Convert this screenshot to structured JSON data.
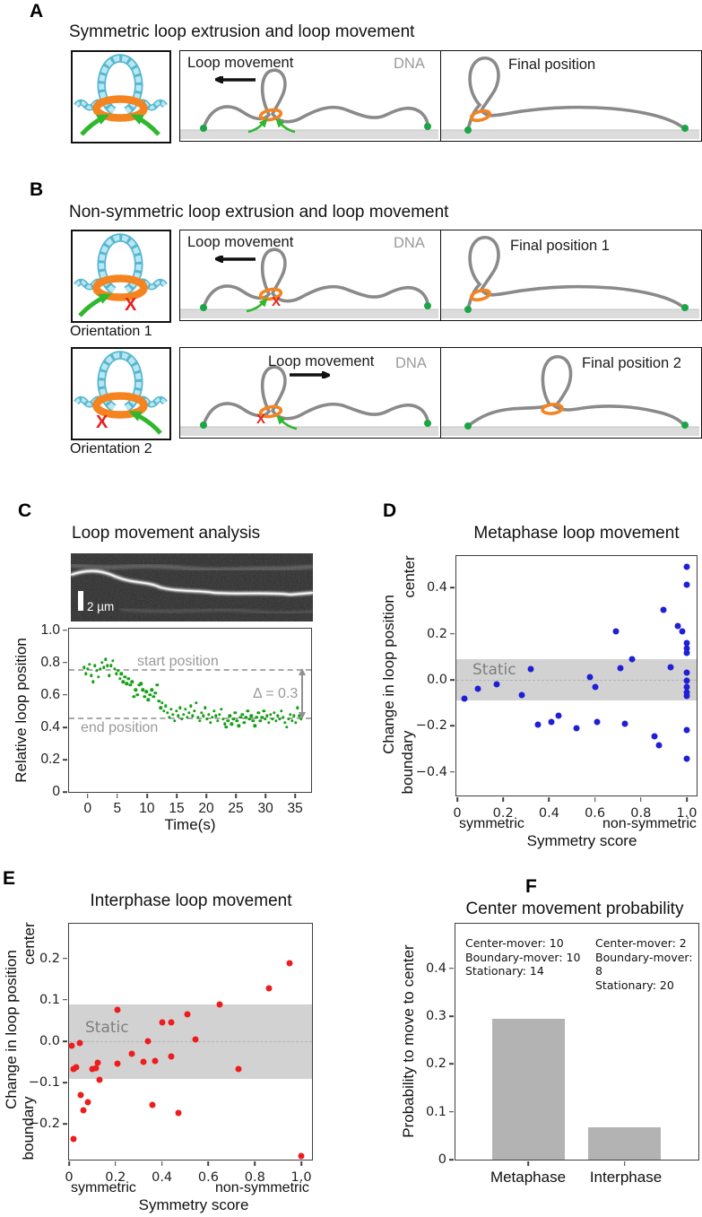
{
  "figure": {
    "panel_a": {
      "label": "A",
      "title": "Symmetric loop extrusion and loop movement",
      "mid": {
        "heading": "Loop movement",
        "dna": "DNA"
      },
      "right": {
        "heading": "Final position"
      }
    },
    "panel_b": {
      "label": "B",
      "title": "Non-symmetric loop extrusion and loop movement",
      "row1": {
        "caption": "Orientation 1",
        "mid_heading": "Loop movement",
        "dna": "DNA",
        "x_mark": "X",
        "right_heading": "Final position 1"
      },
      "row2": {
        "caption": "Orientation 2",
        "mid_heading": "Loop movement",
        "dna": "DNA",
        "x_mark": "X",
        "right_heading": "Final position 2"
      }
    },
    "panel_c": {
      "label": "C",
      "title": "Loop movement analysis",
      "scalebar_label": "2 µm",
      "start_label": "start position",
      "end_label": "end position",
      "delta_label": "Δ = 0.3",
      "ylabel": "Relative loop position",
      "xlabel": "Time(s)"
    },
    "panel_d": {
      "label": "D",
      "title": "Metaphase loop movement",
      "static_label": "Static",
      "ylabel": "Change in loop position",
      "y_top_word": "center",
      "y_bottom_word": "boundary",
      "x_left_word": "symmetric",
      "x_right_word": "non-symmetric",
      "xlabel": "Symmetry score"
    },
    "panel_e": {
      "label": "E",
      "title": "Interphase loop movement",
      "static_label": "Static",
      "ylabel": "Change in loop position",
      "y_top_word": "center",
      "y_bottom_word": "boundary",
      "x_left_word": "symmetric",
      "x_right_word": "non-symmetric",
      "xlabel": "Symmetry score"
    },
    "panel_f": {
      "label": "F",
      "title": "Center movement probability",
      "ylabel": "Probability to move to center",
      "stats_metaphase": "Center-mover: 10\nBoundary-mover: 10\nStationary: 14",
      "stats_interphase": "Center-mover: 2\nBoundary-mover: 8\nStationary: 20",
      "cat_metaphase": "Metaphase",
      "cat_interphase": "Interphase"
    }
  },
  "colors": {
    "dna_strand_gray": "#8a8a8a",
    "condensin_orange": "#f5831f",
    "dna_cartoon_cyan": "#b9e7f3",
    "dna_cartoon_cyan_dark": "#57b7cf",
    "arrow_green": "#2eb82e",
    "tether_dot_green": "#1ca544",
    "red_x": "#e61e1e",
    "scatter_green": "#16a016",
    "scatter_blue": "#1f1fd6",
    "scatter_red": "#ee1c1c",
    "bar_gray": "#b3b3b3",
    "static_band_gray": "#d2d2d2",
    "surface_gray": "#dcdcdc"
  },
  "chart_data": [
    {
      "id": "loop-trace",
      "type": "scatter",
      "title": "Loop movement analysis",
      "xlabel": "Time(s)",
      "ylabel": "Relative loop position",
      "xlim": [
        -3.15,
        37.7
      ],
      "ylim": [
        0,
        1.01
      ],
      "xticks": {
        "v": [
          0,
          5,
          10,
          15,
          20,
          25,
          30,
          35
        ],
        "l": [
          "0",
          "5",
          "10",
          "15",
          "20",
          "25",
          "30",
          "35"
        ]
      },
      "yticks": {
        "v": [
          0,
          0.2,
          0.4,
          0.6,
          0.8,
          1.0
        ],
        "l": [
          "0",
          "0.2",
          "0.4",
          "0.6",
          "0.8",
          "1.0"
        ]
      },
      "hlines": [
        {
          "y": 0.76,
          "label": "start position"
        },
        {
          "y": 0.46,
          "label": "end position"
        }
      ],
      "delta": 0.3,
      "point": {
        "color": "#16a016",
        "size": 3.4
      },
      "points": [
        [
          -0.6,
          0.77
        ],
        [
          -0.3,
          0.73
        ],
        [
          0,
          0.76
        ],
        [
          0.3,
          0.79
        ],
        [
          0.6,
          0.72
        ],
        [
          0.9,
          0.68
        ],
        [
          1.2,
          0.78
        ],
        [
          1.5,
          0.75
        ],
        [
          1.8,
          0.71
        ],
        [
          2.1,
          0.76
        ],
        [
          2.4,
          0.8
        ],
        [
          2.7,
          0.77
        ],
        [
          3.0,
          0.82
        ],
        [
          3.3,
          0.78
        ],
        [
          3.6,
          0.72
        ],
        [
          3.9,
          0.78
        ],
        [
          4.2,
          0.81
        ],
        [
          4.5,
          0.76
        ],
        [
          4.8,
          0.73
        ],
        [
          5.1,
          0.75
        ],
        [
          5.4,
          0.7
        ],
        [
          5.7,
          0.73
        ],
        [
          6.0,
          0.68
        ],
        [
          6.3,
          0.71
        ],
        [
          6.6,
          0.67
        ],
        [
          6.9,
          0.7
        ],
        [
          7.2,
          0.66
        ],
        [
          7.5,
          0.68
        ],
        [
          7.8,
          0.59
        ],
        [
          8.1,
          0.63
        ],
        [
          8.4,
          0.6
        ],
        [
          8.7,
          0.66
        ],
        [
          9.0,
          0.67
        ],
        [
          9.3,
          0.63
        ],
        [
          9.6,
          0.59
        ],
        [
          9.9,
          0.62
        ],
        [
          10.2,
          0.57
        ],
        [
          10.5,
          0.6
        ],
        [
          10.8,
          0.63
        ],
        [
          11.1,
          0.59
        ],
        [
          11.4,
          0.61
        ],
        [
          11.7,
          0.66
        ],
        [
          12.0,
          0.56
        ],
        [
          12.3,
          0.52
        ],
        [
          12.6,
          0.55
        ],
        [
          12.9,
          0.5
        ],
        [
          13.2,
          0.53
        ],
        [
          13.5,
          0.49
        ],
        [
          13.8,
          0.46
        ],
        [
          14.1,
          0.51
        ],
        [
          14.4,
          0.48
        ],
        [
          14.7,
          0.44
        ],
        [
          15.0,
          0.5
        ],
        [
          15.3,
          0.47
        ],
        [
          15.6,
          0.52
        ],
        [
          15.9,
          0.45
        ],
        [
          16.2,
          0.48
        ],
        [
          16.5,
          0.51
        ],
        [
          16.8,
          0.46
        ],
        [
          17.1,
          0.49
        ],
        [
          17.4,
          0.53
        ],
        [
          17.7,
          0.47
        ],
        [
          18.0,
          0.5
        ],
        [
          18.3,
          0.55
        ],
        [
          18.6,
          0.46
        ],
        [
          18.9,
          0.44
        ],
        [
          19.2,
          0.49
        ],
        [
          19.5,
          0.47
        ],
        [
          19.8,
          0.52
        ],
        [
          20.1,
          0.45
        ],
        [
          20.4,
          0.48
        ],
        [
          20.7,
          0.43
        ],
        [
          21.0,
          0.46
        ],
        [
          21.3,
          0.5
        ],
        [
          21.6,
          0.47
        ],
        [
          21.9,
          0.44
        ],
        [
          22.2,
          0.48
        ],
        [
          22.5,
          0.51
        ],
        [
          22.8,
          0.45
        ],
        [
          23.1,
          0.42
        ],
        [
          23.4,
          0.4
        ],
        [
          23.7,
          0.44
        ],
        [
          24.0,
          0.47
        ],
        [
          24.3,
          0.42
        ],
        [
          24.6,
          0.45
        ],
        [
          24.9,
          0.49
        ],
        [
          25.2,
          0.44
        ],
        [
          25.5,
          0.41
        ],
        [
          25.8,
          0.46
        ],
        [
          26.1,
          0.48
        ],
        [
          26.4,
          0.43
        ],
        [
          26.7,
          0.46
        ],
        [
          27.0,
          0.5
        ],
        [
          27.3,
          0.45
        ],
        [
          27.6,
          0.47
        ],
        [
          27.9,
          0.44
        ],
        [
          28.2,
          0.41
        ],
        [
          28.5,
          0.46
        ],
        [
          28.8,
          0.49
        ],
        [
          29.1,
          0.44
        ],
        [
          29.4,
          0.46
        ],
        [
          29.7,
          0.5
        ],
        [
          30.0,
          0.45
        ],
        [
          30.3,
          0.47
        ],
        [
          30.6,
          0.43
        ],
        [
          30.9,
          0.48
        ],
        [
          31.2,
          0.45
        ],
        [
          31.5,
          0.49
        ],
        [
          31.8,
          0.44
        ],
        [
          32.1,
          0.47
        ],
        [
          32.4,
          0.45
        ],
        [
          32.7,
          0.5
        ],
        [
          33.0,
          0.46
        ],
        [
          33.3,
          0.43
        ],
        [
          33.6,
          0.4
        ],
        [
          33.9,
          0.45
        ],
        [
          34.2,
          0.48
        ],
        [
          34.5,
          0.44
        ],
        [
          34.8,
          0.47
        ],
        [
          35.1,
          0.43
        ],
        [
          35.4,
          0.52
        ],
        [
          35.7,
          0.47
        ],
        [
          36.0,
          0.45
        ]
      ]
    },
    {
      "id": "metaphase",
      "type": "scatter",
      "title": "Metaphase loop movement",
      "xlabel": "Symmetry score",
      "ylabel": "Change in loop position",
      "xlim": [
        -0.004,
        1.043
      ],
      "ylim": [
        -0.503,
        0.538
      ],
      "xticks": {
        "v": [
          0,
          0.2,
          0.4,
          0.6,
          0.8,
          1.0
        ],
        "l": [
          "0",
          "0.2",
          "0.4",
          "0.6",
          "0.8",
          "1.0"
        ]
      },
      "yticks": {
        "v": [
          -0.4,
          -0.2,
          0.0,
          0.2,
          0.4
        ],
        "l": [
          "−0.4",
          "−0.2",
          "0.0",
          "0.2",
          "0.4"
        ]
      },
      "static_band": [
        -0.09,
        0.09
      ],
      "zero_line": true,
      "point": {
        "color": "#1f1fd6",
        "size": 7
      },
      "points": [
        [
          0.03,
          -0.08
        ],
        [
          0.09,
          -0.04
        ],
        [
          0.17,
          -0.02
        ],
        [
          0.28,
          -0.065
        ],
        [
          0.32,
          0.045
        ],
        [
          0.35,
          -0.195
        ],
        [
          0.41,
          -0.185
        ],
        [
          0.44,
          -0.155
        ],
        [
          0.52,
          -0.21
        ],
        [
          0.58,
          0.01
        ],
        [
          0.6,
          -0.03
        ],
        [
          0.61,
          -0.185
        ],
        [
          0.69,
          0.21
        ],
        [
          0.71,
          0.05
        ],
        [
          0.73,
          -0.19
        ],
        [
          0.76,
          0.088
        ],
        [
          0.86,
          -0.245
        ],
        [
          0.88,
          -0.285
        ],
        [
          0.9,
          0.305
        ],
        [
          0.93,
          0.055
        ],
        [
          0.96,
          0.235
        ],
        [
          0.98,
          0.21
        ],
        [
          1.0,
          0.49
        ],
        [
          1.0,
          0.415
        ],
        [
          1.0,
          0.16
        ],
        [
          1.0,
          0.135
        ],
        [
          1.0,
          0.115
        ],
        [
          1.0,
          0.03
        ],
        [
          1.0,
          -0.005
        ],
        [
          1.0,
          -0.03
        ],
        [
          1.0,
          -0.055
        ],
        [
          1.0,
          -0.07
        ],
        [
          1.0,
          -0.22
        ],
        [
          1.0,
          -0.345
        ]
      ]
    },
    {
      "id": "interphase",
      "type": "scatter",
      "title": "Interphase loop movement",
      "xlabel": "Symmetry score",
      "ylabel": "Change in loop position",
      "xlim": [
        0,
        1.046
      ],
      "ylim": [
        -0.286,
        0.284
      ],
      "xticks": {
        "v": [
          0,
          0.2,
          0.4,
          0.6,
          0.8,
          1.0
        ],
        "l": [
          "0",
          "0.2",
          "0.4",
          "0.6",
          "0.8",
          "1.0"
        ]
      },
      "yticks": {
        "v": [
          -0.2,
          -0.1,
          0.0,
          0.1,
          0.2
        ],
        "l": [
          "−0.2",
          "−0.1",
          "0.0",
          "0.1",
          "0.2"
        ]
      },
      "static_band": [
        -0.09,
        0.09
      ],
      "zero_line": true,
      "point": {
        "color": "#ee1c1c",
        "size": 7
      },
      "points": [
        [
          0.01,
          -0.01
        ],
        [
          0.045,
          -0.005
        ],
        [
          0.02,
          -0.068
        ],
        [
          0.03,
          -0.062
        ],
        [
          0.02,
          -0.237
        ],
        [
          0.05,
          -0.13
        ],
        [
          0.06,
          -0.167
        ],
        [
          0.08,
          -0.148
        ],
        [
          0.1,
          -0.067
        ],
        [
          0.115,
          -0.065
        ],
        [
          0.125,
          -0.052
        ],
        [
          0.13,
          -0.093
        ],
        [
          0.21,
          -0.055
        ],
        [
          0.21,
          0.075
        ],
        [
          0.27,
          -0.03
        ],
        [
          0.32,
          -0.05
        ],
        [
          0.34,
          0.0
        ],
        [
          0.36,
          -0.153
        ],
        [
          0.37,
          -0.047
        ],
        [
          0.4,
          0.045
        ],
        [
          0.44,
          0.045
        ],
        [
          0.44,
          -0.037
        ],
        [
          0.47,
          -0.173
        ],
        [
          0.51,
          0.066
        ],
        [
          0.545,
          0.005
        ],
        [
          0.65,
          0.088
        ],
        [
          0.73,
          -0.067
        ],
        [
          0.86,
          0.128
        ],
        [
          0.95,
          0.188
        ],
        [
          1.0,
          -0.278
        ]
      ]
    },
    {
      "id": "probability",
      "type": "bar",
      "title": "Center movement probability",
      "ylabel": "Probability to move to center",
      "categories": [
        "Metaphase",
        "Interphase"
      ],
      "values": [
        0.294,
        0.067
      ],
      "ylim": [
        0,
        0.493
      ],
      "yticks": {
        "v": [
          0,
          0.1,
          0.2,
          0.3,
          0.4
        ],
        "l": [
          "0",
          "0.1",
          "0.2",
          "0.3",
          "0.4"
        ]
      },
      "bars": {
        "centers": [
          0.3,
          0.696
        ],
        "width": 0.3,
        "color": "#b3b3b3"
      },
      "annotations": [
        "Center-mover: 10\nBoundary-mover: 10\nStationary: 14",
        "Center-mover: 2\nBoundary-mover: 8\nStationary: 20"
      ]
    }
  ]
}
